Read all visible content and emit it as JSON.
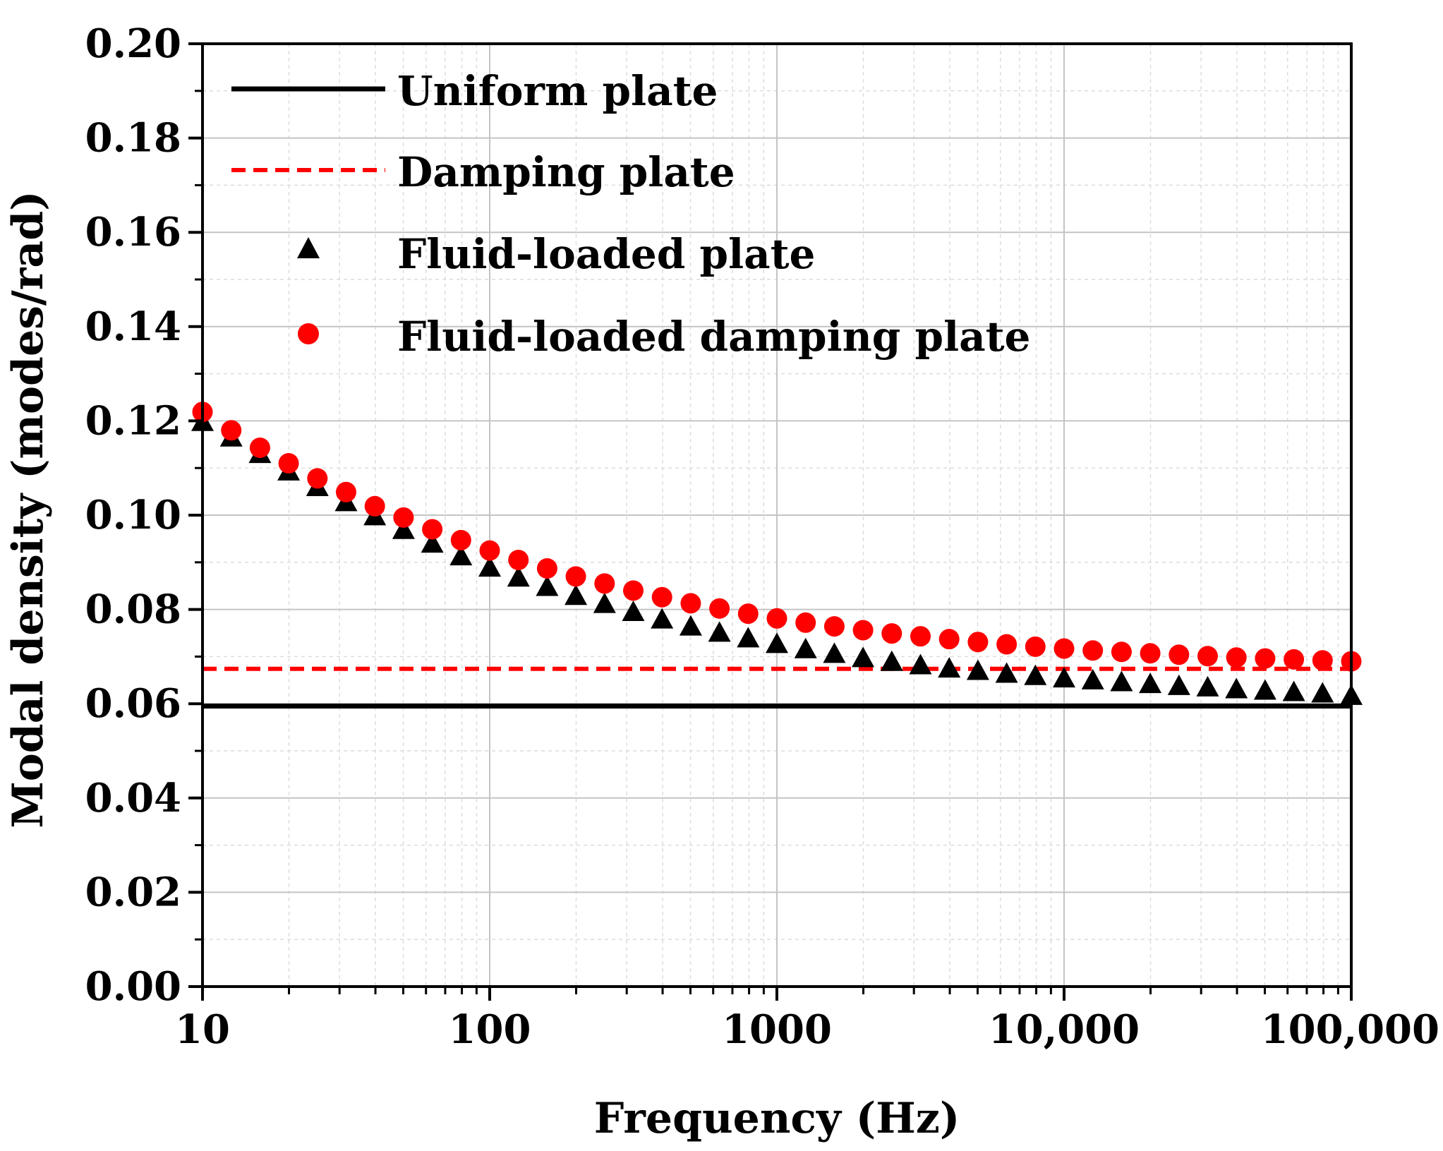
{
  "chart_data": {
    "type": "scatter",
    "title": "",
    "xlabel": "Frequency (Hz)",
    "ylabel": "Modal density (modes/rad)",
    "xscale": "log",
    "xlim": [
      10,
      100000
    ],
    "ylim": [
      0,
      0.2
    ],
    "grid": true,
    "legend_position": "top-left",
    "x_ticks": [
      {
        "value": 10,
        "label": "10"
      },
      {
        "value": 100,
        "label": "100"
      },
      {
        "value": 1000,
        "label": "1000"
      },
      {
        "value": 10000,
        "label": "10,000"
      },
      {
        "value": 100000,
        "label": "100,000"
      }
    ],
    "y_ticks": [
      {
        "value": 0,
        "label": "0.00"
      },
      {
        "value": 0.02,
        "label": "0.02"
      },
      {
        "value": 0.04,
        "label": "0.04"
      },
      {
        "value": 0.06,
        "label": "0.06"
      },
      {
        "value": 0.08,
        "label": "0.08"
      },
      {
        "value": 0.1,
        "label": "0.10"
      },
      {
        "value": 0.12,
        "label": "0.12"
      },
      {
        "value": 0.14,
        "label": "0.14"
      },
      {
        "value": 0.16,
        "label": "0.16"
      },
      {
        "value": 0.18,
        "label": "0.18"
      },
      {
        "value": 0.2,
        "label": "0.20"
      }
    ],
    "x": [
      10,
      12.59,
      15.85,
      19.95,
      25.12,
      31.62,
      39.81,
      50.12,
      63.1,
      79.43,
      100,
      125.9,
      158.5,
      199.5,
      251.2,
      316.2,
      398.1,
      501.2,
      631,
      794.3,
      1000,
      1259,
      1585,
      1995,
      2512,
      3162,
      3981,
      5012,
      6310,
      7943,
      10000,
      12590,
      15850,
      19950,
      25120,
      31620,
      39810,
      50120,
      63100,
      79430,
      100000
    ],
    "series": [
      {
        "name": "Uniform plate",
        "style": "line",
        "color": "#000000",
        "x": [
          10,
          100000
        ],
        "values": [
          0.0595,
          0.0595
        ]
      },
      {
        "name": "Damping plate",
        "style": "dashed-line",
        "color": "#ff0000",
        "x": [
          10,
          100000
        ],
        "values": [
          0.0674,
          0.0674
        ]
      },
      {
        "name": "Fluid-loaded plate",
        "style": "triangle",
        "color": "#000000",
        "values": [
          0.1195,
          0.1162,
          0.1127,
          0.109,
          0.1057,
          0.1025,
          0.0995,
          0.0966,
          0.0937,
          0.091,
          0.0886,
          0.0865,
          0.0845,
          0.0826,
          0.0809,
          0.0792,
          0.0776,
          0.0761,
          0.0748,
          0.0736,
          0.0724,
          0.0713,
          0.0703,
          0.0694,
          0.0686,
          0.0679,
          0.0672,
          0.0667,
          0.0661,
          0.0656,
          0.0651,
          0.0647,
          0.0643,
          0.0639,
          0.0635,
          0.0632,
          0.0628,
          0.0625,
          0.0622,
          0.0619,
          0.0614
        ]
      },
      {
        "name": "Fluid-loaded damping plate",
        "style": "circle",
        "color": "#ff0000",
        "values": [
          0.1219,
          0.118,
          0.1143,
          0.111,
          0.1078,
          0.1049,
          0.1019,
          0.0995,
          0.097,
          0.0947,
          0.0925,
          0.0905,
          0.0887,
          0.087,
          0.0855,
          0.084,
          0.0826,
          0.0813,
          0.0802,
          0.0791,
          0.0781,
          0.0772,
          0.0764,
          0.0756,
          0.0749,
          0.0743,
          0.0737,
          0.0731,
          0.0726,
          0.0721,
          0.0717,
          0.0713,
          0.071,
          0.0707,
          0.0704,
          0.0701,
          0.0698,
          0.0696,
          0.0694,
          0.0692,
          0.069
        ]
      }
    ]
  }
}
